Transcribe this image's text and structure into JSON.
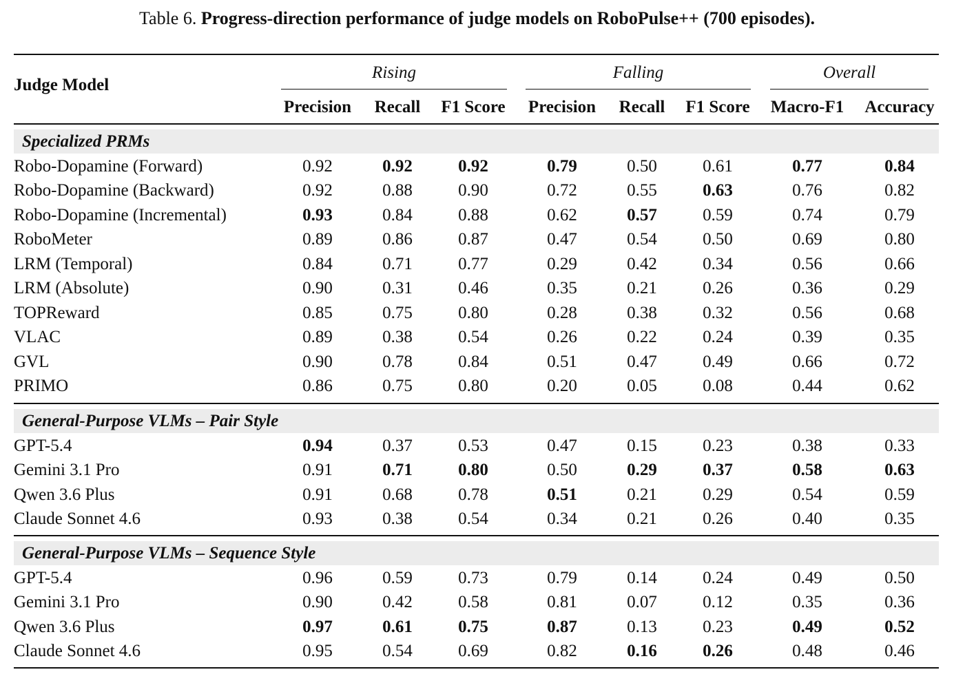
{
  "caption": {
    "label": "Table 6.",
    "title": "Progress-direction performance of judge models on RoboPulse++ (700 episodes)."
  },
  "header": {
    "row_label": "Judge Model",
    "groups": [
      "Rising",
      "Falling",
      "Overall"
    ],
    "columns": [
      "Precision",
      "Recall",
      "F1 Score",
      "Precision",
      "Recall",
      "F1 Score",
      "Macro-F1",
      "Accuracy"
    ]
  },
  "sections": [
    {
      "title": "Specialized PRMs",
      "rows": [
        {
          "model": "Robo-Dopamine (Forward)",
          "values": [
            "0.92",
            "0.92",
            "0.92",
            "0.79",
            "0.50",
            "0.61",
            "0.77",
            "0.84"
          ],
          "bold": [
            false,
            true,
            true,
            true,
            false,
            false,
            true,
            true
          ]
        },
        {
          "model": "Robo-Dopamine (Backward)",
          "values": [
            "0.92",
            "0.88",
            "0.90",
            "0.72",
            "0.55",
            "0.63",
            "0.76",
            "0.82"
          ],
          "bold": [
            false,
            false,
            false,
            false,
            false,
            true,
            false,
            false
          ]
        },
        {
          "model": "Robo-Dopamine (Incremental)",
          "values": [
            "0.93",
            "0.84",
            "0.88",
            "0.62",
            "0.57",
            "0.59",
            "0.74",
            "0.79"
          ],
          "bold": [
            true,
            false,
            false,
            false,
            true,
            false,
            false,
            false
          ]
        },
        {
          "model": "RoboMeter",
          "values": [
            "0.89",
            "0.86",
            "0.87",
            "0.47",
            "0.54",
            "0.50",
            "0.69",
            "0.80"
          ],
          "bold": [
            false,
            false,
            false,
            false,
            false,
            false,
            false,
            false
          ]
        },
        {
          "model": "LRM (Temporal)",
          "values": [
            "0.84",
            "0.71",
            "0.77",
            "0.29",
            "0.42",
            "0.34",
            "0.56",
            "0.66"
          ],
          "bold": [
            false,
            false,
            false,
            false,
            false,
            false,
            false,
            false
          ]
        },
        {
          "model": "LRM (Absolute)",
          "values": [
            "0.90",
            "0.31",
            "0.46",
            "0.35",
            "0.21",
            "0.26",
            "0.36",
            "0.29"
          ],
          "bold": [
            false,
            false,
            false,
            false,
            false,
            false,
            false,
            false
          ]
        },
        {
          "model": "TOPReward",
          "values": [
            "0.85",
            "0.75",
            "0.80",
            "0.28",
            "0.38",
            "0.32",
            "0.56",
            "0.68"
          ],
          "bold": [
            false,
            false,
            false,
            false,
            false,
            false,
            false,
            false
          ]
        },
        {
          "model": "VLAC",
          "values": [
            "0.89",
            "0.38",
            "0.54",
            "0.26",
            "0.22",
            "0.24",
            "0.39",
            "0.35"
          ],
          "bold": [
            false,
            false,
            false,
            false,
            false,
            false,
            false,
            false
          ]
        },
        {
          "model": "GVL",
          "values": [
            "0.90",
            "0.78",
            "0.84",
            "0.51",
            "0.47",
            "0.49",
            "0.66",
            "0.72"
          ],
          "bold": [
            false,
            false,
            false,
            false,
            false,
            false,
            false,
            false
          ]
        },
        {
          "model": "PRIMO",
          "values": [
            "0.86",
            "0.75",
            "0.80",
            "0.20",
            "0.05",
            "0.08",
            "0.44",
            "0.62"
          ],
          "bold": [
            false,
            false,
            false,
            false,
            false,
            false,
            false,
            false
          ]
        }
      ]
    },
    {
      "title": "General-Purpose VLMs – Pair Style",
      "rows": [
        {
          "model": "GPT-5.4",
          "values": [
            "0.94",
            "0.37",
            "0.53",
            "0.47",
            "0.15",
            "0.23",
            "0.38",
            "0.33"
          ],
          "bold": [
            true,
            false,
            false,
            false,
            false,
            false,
            false,
            false
          ]
        },
        {
          "model": "Gemini 3.1 Pro",
          "values": [
            "0.91",
            "0.71",
            "0.80",
            "0.50",
            "0.29",
            "0.37",
            "0.58",
            "0.63"
          ],
          "bold": [
            false,
            true,
            true,
            false,
            true,
            true,
            true,
            true
          ]
        },
        {
          "model": "Qwen 3.6 Plus",
          "values": [
            "0.91",
            "0.68",
            "0.78",
            "0.51",
            "0.21",
            "0.29",
            "0.54",
            "0.59"
          ],
          "bold": [
            false,
            false,
            false,
            true,
            false,
            false,
            false,
            false
          ]
        },
        {
          "model": "Claude Sonnet 4.6",
          "values": [
            "0.93",
            "0.38",
            "0.54",
            "0.34",
            "0.21",
            "0.26",
            "0.40",
            "0.35"
          ],
          "bold": [
            false,
            false,
            false,
            false,
            false,
            false,
            false,
            false
          ]
        }
      ]
    },
    {
      "title": "General-Purpose VLMs – Sequence Style",
      "rows": [
        {
          "model": "GPT-5.4",
          "values": [
            "0.96",
            "0.59",
            "0.73",
            "0.79",
            "0.14",
            "0.24",
            "0.49",
            "0.50"
          ],
          "bold": [
            false,
            false,
            false,
            false,
            false,
            false,
            false,
            false
          ]
        },
        {
          "model": "Gemini 3.1 Pro",
          "values": [
            "0.90",
            "0.42",
            "0.58",
            "0.81",
            "0.07",
            "0.12",
            "0.35",
            "0.36"
          ],
          "bold": [
            false,
            false,
            false,
            false,
            false,
            false,
            false,
            false
          ]
        },
        {
          "model": "Qwen 3.6 Plus",
          "values": [
            "0.97",
            "0.61",
            "0.75",
            "0.87",
            "0.13",
            "0.23",
            "0.49",
            "0.52"
          ],
          "bold": [
            true,
            true,
            true,
            true,
            false,
            false,
            true,
            true
          ]
        },
        {
          "model": "Claude Sonnet 4.6",
          "values": [
            "0.95",
            "0.54",
            "0.69",
            "0.82",
            "0.16",
            "0.26",
            "0.48",
            "0.46"
          ],
          "bold": [
            false,
            false,
            false,
            false,
            true,
            true,
            false,
            false
          ]
        }
      ]
    }
  ]
}
